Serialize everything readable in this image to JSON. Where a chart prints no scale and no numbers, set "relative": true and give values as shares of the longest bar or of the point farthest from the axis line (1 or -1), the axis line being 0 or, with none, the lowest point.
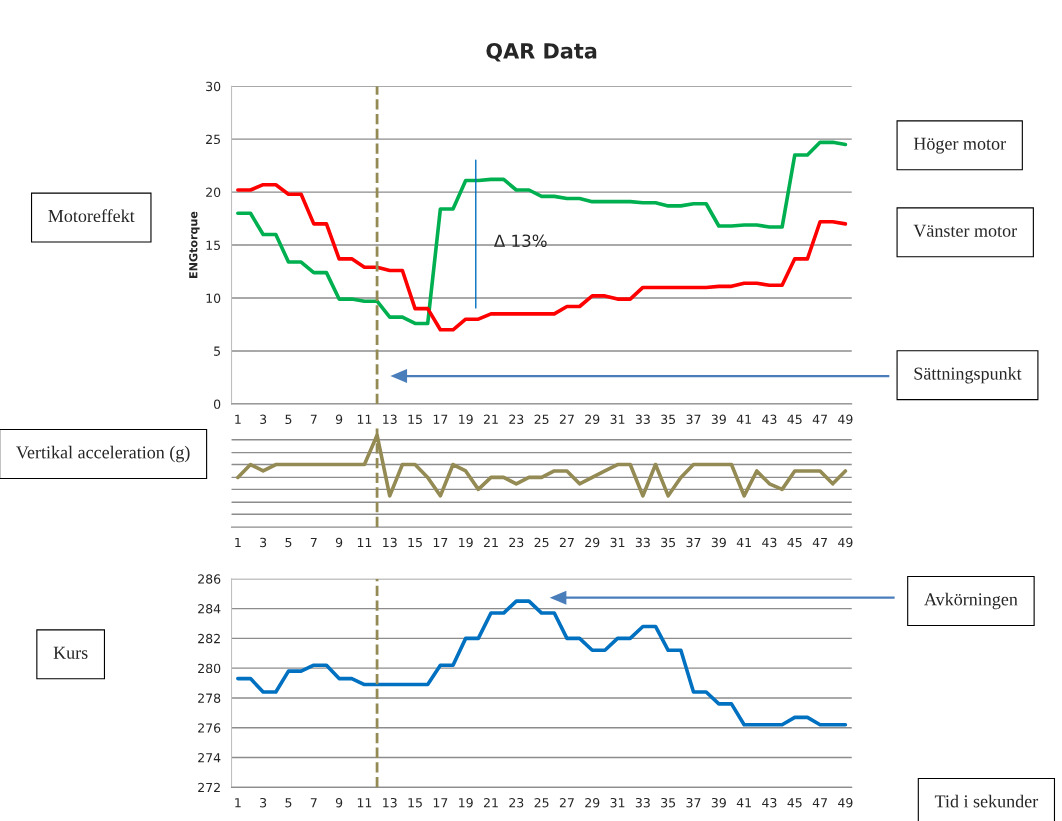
{
  "chart_data": [
    {
      "type": "line",
      "title": "QAR Data",
      "ylabel": "ENGtorque",
      "x": [
        1,
        2,
        3,
        4,
        5,
        6,
        7,
        8,
        9,
        10,
        11,
        12,
        13,
        14,
        15,
        16,
        17,
        18,
        19,
        20,
        21,
        22,
        23,
        24,
        25,
        26,
        27,
        28,
        29,
        30,
        31,
        32,
        33,
        34,
        35,
        36,
        37,
        38,
        39,
        40,
        41,
        42,
        43,
        44,
        45,
        46,
        47,
        48,
        49
      ],
      "xlim": [
        0.5,
        49.5
      ],
      "xticks": [
        1,
        3,
        5,
        7,
        9,
        11,
        13,
        15,
        17,
        19,
        21,
        23,
        25,
        27,
        29,
        31,
        33,
        35,
        37,
        39,
        41,
        43,
        45,
        47,
        49
      ],
      "ylim": [
        0,
        30
      ],
      "yticks": [
        0,
        5,
        10,
        15,
        20,
        25,
        30
      ],
      "grid": "y",
      "marker": "none",
      "line_style": "solid",
      "series": [
        {
          "name": "Höger motor",
          "color": "#00b050",
          "values": [
            18,
            18,
            16,
            16,
            13.4,
            13.4,
            12.4,
            12.4,
            9.9,
            9.9,
            9.7,
            9.7,
            8.2,
            8.2,
            7.6,
            7.6,
            18.4,
            18.4,
            21.1,
            21.1,
            21.2,
            21.2,
            20.2,
            20.2,
            19.6,
            19.6,
            19.4,
            19.4,
            19.1,
            19.1,
            19.1,
            19.1,
            19,
            19,
            18.7,
            18.7,
            18.9,
            18.9,
            16.8,
            16.8,
            16.9,
            16.9,
            16.7,
            16.7,
            23.5,
            23.5,
            24.7,
            24.7,
            24.5
          ]
        },
        {
          "name": "Vänster motor",
          "color": "#ff0000",
          "values": [
            20.2,
            20.2,
            20.7,
            20.7,
            19.8,
            19.8,
            17,
            17,
            13.7,
            13.7,
            12.9,
            12.9,
            12.6,
            12.6,
            9,
            9,
            7,
            7,
            8,
            8,
            8.5,
            8.5,
            8.5,
            8.5,
            8.5,
            8.5,
            9.2,
            9.2,
            10.2,
            10.2,
            9.9,
            9.9,
            11,
            11,
            11,
            11,
            11,
            11,
            11.1,
            11.1,
            11.4,
            11.4,
            11.2,
            11.2,
            13.7,
            13.7,
            17.2,
            17.2,
            17
          ]
        }
      ],
      "ref_lines": [
        {
          "axis": "x",
          "value": 12,
          "color": "#948a54",
          "line_style": "dashed"
        }
      ],
      "annotations": [
        "Motoreffekt",
        "Sättningspunkt",
        "Δ 13%"
      ]
    },
    {
      "type": "line",
      "relative": true,
      "x": [
        1,
        2,
        3,
        4,
        5,
        6,
        7,
        8,
        9,
        10,
        11,
        12,
        13,
        14,
        15,
        16,
        17,
        18,
        19,
        20,
        21,
        22,
        23,
        24,
        25,
        26,
        27,
        28,
        29,
        30,
        31,
        32,
        33,
        34,
        35,
        36,
        37,
        38,
        39,
        40,
        41,
        42,
        43,
        44,
        45,
        46,
        47,
        48,
        49
      ],
      "xlim": [
        0.5,
        49.5
      ],
      "xticks": [
        1,
        3,
        5,
        7,
        9,
        11,
        13,
        15,
        17,
        19,
        21,
        23,
        25,
        27,
        29,
        31,
        33,
        35,
        37,
        39,
        41,
        43,
        45,
        47,
        49
      ],
      "grid": "y",
      "marker": "none",
      "line_style": "solid",
      "series": [
        {
          "color": "#948a54",
          "values": [
            0.54,
            0.68,
            0.61,
            0.68,
            0.68,
            0.68,
            0.68,
            0.68,
            0.68,
            0.68,
            0.68,
            1,
            0.34,
            0.68,
            0.68,
            0.54,
            0.34,
            0.68,
            0.61,
            0.41,
            0.54,
            0.54,
            0.47,
            0.54,
            0.54,
            0.61,
            0.61,
            0.47,
            0.54,
            0.61,
            0.68,
            0.68,
            0.34,
            0.68,
            0.34,
            0.54,
            0.68,
            0.68,
            0.68,
            0.68,
            0.34,
            0.61,
            0.47,
            0.41,
            0.61,
            0.61,
            0.61,
            0.47,
            0.61
          ]
        }
      ],
      "ref_lines": [
        {
          "axis": "x",
          "value": 12,
          "color": "#948a54",
          "line_style": "dashed"
        }
      ],
      "annotations": [
        "Vertikal acceleration (g)"
      ]
    },
    {
      "type": "line",
      "x": [
        1,
        2,
        3,
        4,
        5,
        6,
        7,
        8,
        9,
        10,
        11,
        12,
        13,
        14,
        15,
        16,
        17,
        18,
        19,
        20,
        21,
        22,
        23,
        24,
        25,
        26,
        27,
        28,
        29,
        30,
        31,
        32,
        33,
        34,
        35,
        36,
        37,
        38,
        39,
        40,
        41,
        42,
        43,
        44,
        45,
        46,
        47,
        48,
        49
      ],
      "xlim": [
        0.5,
        49.5
      ],
      "xticks": [
        1,
        3,
        5,
        7,
        9,
        11,
        13,
        15,
        17,
        19,
        21,
        23,
        25,
        27,
        29,
        31,
        33,
        35,
        37,
        39,
        41,
        43,
        45,
        47,
        49
      ],
      "ylim": [
        272,
        286
      ],
      "yticks": [
        272,
        274,
        276,
        278,
        280,
        282,
        284,
        286
      ],
      "grid": "y",
      "marker": "none",
      "line_style": "solid",
      "series": [
        {
          "color": "#0070c0",
          "values": [
            279.3,
            279.3,
            278.4,
            278.4,
            279.8,
            279.8,
            280.2,
            280.2,
            279.3,
            279.3,
            278.9,
            278.9,
            278.9,
            278.9,
            278.9,
            278.9,
            280.2,
            280.2,
            282,
            282,
            283.7,
            283.7,
            284.5,
            284.5,
            283.7,
            283.7,
            282,
            282,
            281.2,
            281.2,
            282,
            282,
            282.8,
            282.8,
            281.2,
            281.2,
            278.4,
            278.4,
            277.6,
            277.6,
            276.2,
            276.2,
            276.2,
            276.2,
            276.7,
            276.7,
            276.2,
            276.2,
            276.2
          ]
        }
      ],
      "ref_lines": [
        {
          "axis": "x",
          "value": 12,
          "color": "#948a54",
          "line_style": "dashed"
        }
      ],
      "annotations": [
        "Kurs",
        "Avkörningen",
        "Tid i sekunder"
      ]
    }
  ]
}
